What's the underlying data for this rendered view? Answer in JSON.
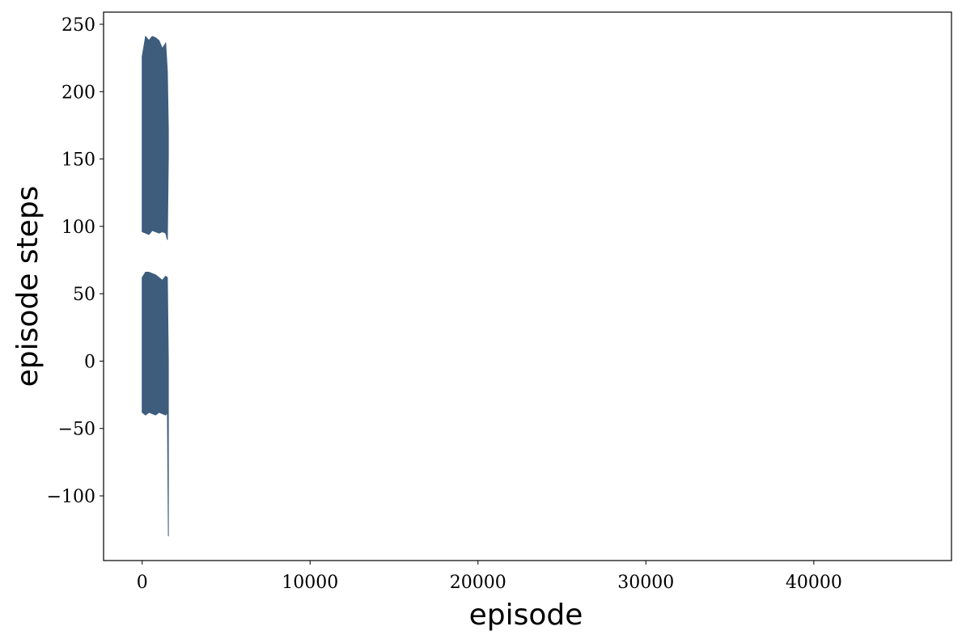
{
  "chart_data": {
    "type": "area",
    "xlabel": "episode",
    "ylabel": "episode steps",
    "xlim": [
      -2300,
      48200
    ],
    "ylim": [
      -148,
      259
    ],
    "x_ticks": [
      0,
      10000,
      20000,
      30000,
      40000
    ],
    "x_tick_labels": [
      "0",
      "10000",
      "20000",
      "30000",
      "40000"
    ],
    "y_ticks": [
      -100,
      -50,
      0,
      50,
      100,
      150,
      200,
      250
    ],
    "y_tick_labels": [
      "−100",
      "−50",
      "0",
      "50",
      "100",
      "150",
      "200",
      "250"
    ],
    "grid": false,
    "series": [
      {
        "color": "#3e5d7d",
        "upper_band": {
          "x": [
            0,
            200,
            400,
            600,
            800,
            1000,
            1200,
            1400,
            1500,
            1560
          ],
          "low": [
            96,
            95,
            94,
            97,
            96,
            95,
            96,
            95,
            90,
            152
          ],
          "high": [
            226,
            241,
            238,
            241,
            240,
            238,
            232,
            236,
            215,
            172
          ]
        },
        "lower_band": {
          "x": [
            0,
            200,
            400,
            600,
            800,
            1000,
            1200,
            1400,
            1500,
            1560
          ],
          "low": [
            -38,
            -40,
            -38,
            -39,
            -40,
            -38,
            -39,
            -40,
            -38,
            -130
          ],
          "high": [
            62,
            66,
            66,
            65,
            64,
            62,
            60,
            63,
            62,
            0
          ]
        }
      }
    ]
  }
}
